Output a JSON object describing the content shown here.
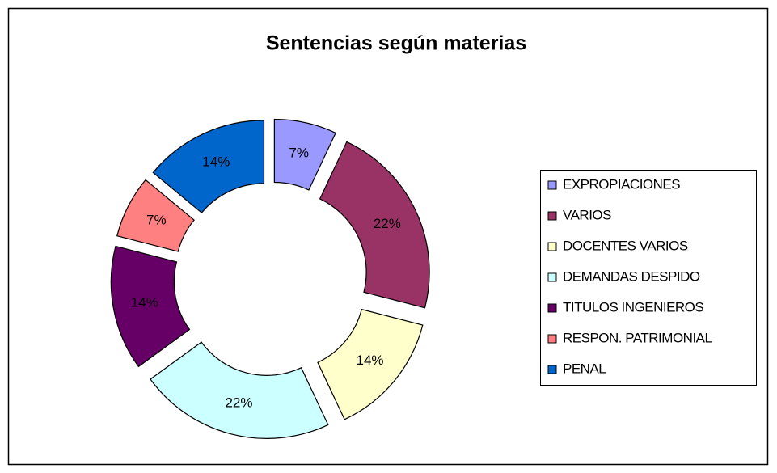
{
  "chart_data": {
    "type": "donut",
    "title": "Sentencias según materias",
    "categories": [
      "EXPROPIACIONES",
      "VARIOS",
      "DOCENTES VARIOS",
      "DEMANDAS DESPIDO",
      "TITULOS INGENIEROS",
      "RESPON. PATRIMONIAL",
      "PENAL"
    ],
    "values": [
      7,
      22,
      14,
      22,
      14,
      7,
      14
    ],
    "value_labels": [
      "7%",
      "22%",
      "14%",
      "22%",
      "14%",
      "7%",
      "14%"
    ],
    "colors": [
      "#9999ff",
      "#993366",
      "#ffffcc",
      "#ccffff",
      "#660066",
      "#ff8080",
      "#0066cc"
    ],
    "legend": "right"
  }
}
